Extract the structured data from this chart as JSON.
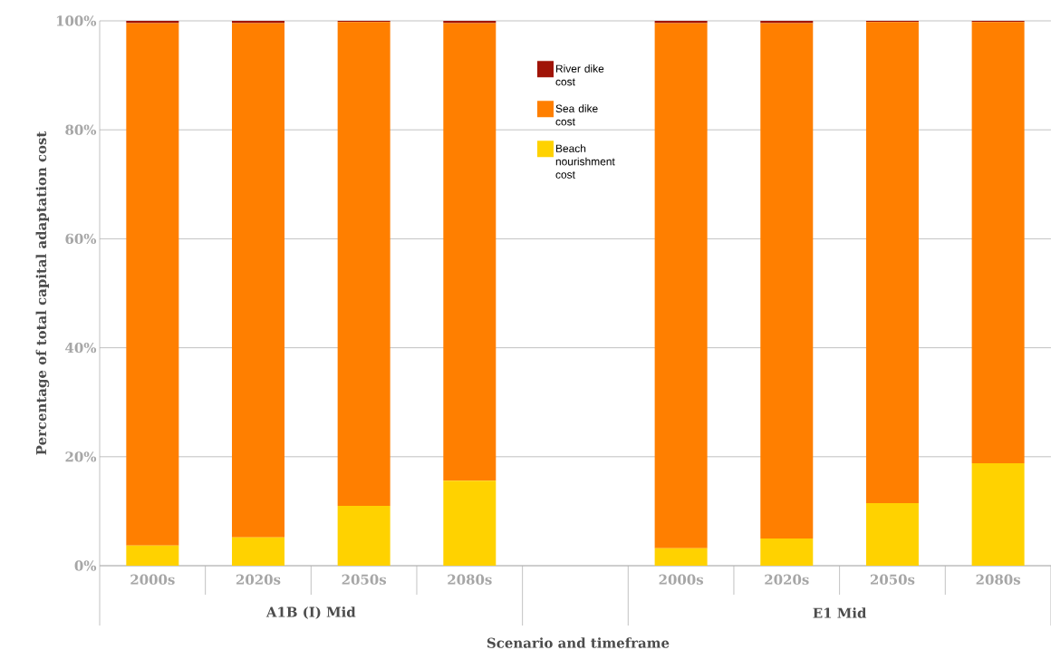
{
  "chart_data": {
    "type": "bar",
    "stacked": true,
    "xlabel": "Scenario and timeframe",
    "ylabel": "Percentage of total capital adaptation cost",
    "categories": [
      "2000s",
      "2020s",
      "2050s",
      "2080s",
      null,
      "2000s",
      "2020s",
      "2050s",
      "2080s"
    ],
    "series": [
      {
        "name": "Beach nourishment cost",
        "color": "#ffd200",
        "values": [
          3.7,
          5.2,
          11.0,
          15.6,
          null,
          3.2,
          5.0,
          11.5,
          18.8
        ]
      },
      {
        "name": "Sea dike cost",
        "color": "#ff7f00",
        "values": [
          95.9,
          94.4,
          88.8,
          84.0,
          null,
          96.4,
          94.6,
          88.3,
          81.0
        ]
      },
      {
        "name": "River dike cost",
        "color": "#a01408",
        "values": [
          0.4,
          0.4,
          0.2,
          0.4,
          null,
          0.4,
          0.4,
          0.2,
          0.2
        ]
      }
    ],
    "ylim": [
      0,
      100
    ],
    "yticks": [
      {
        "value": 0,
        "label": "0%"
      },
      {
        "value": 20,
        "label": "20%"
      },
      {
        "value": 40,
        "label": "40%"
      },
      {
        "value": 60,
        "label": "60%"
      },
      {
        "value": 80,
        "label": "80%"
      },
      {
        "value": 100,
        "label": "100%"
      }
    ],
    "grid": "y",
    "legend": "top",
    "annotations": [
      "A1B (I) Mid",
      "E1 Mid"
    ]
  }
}
